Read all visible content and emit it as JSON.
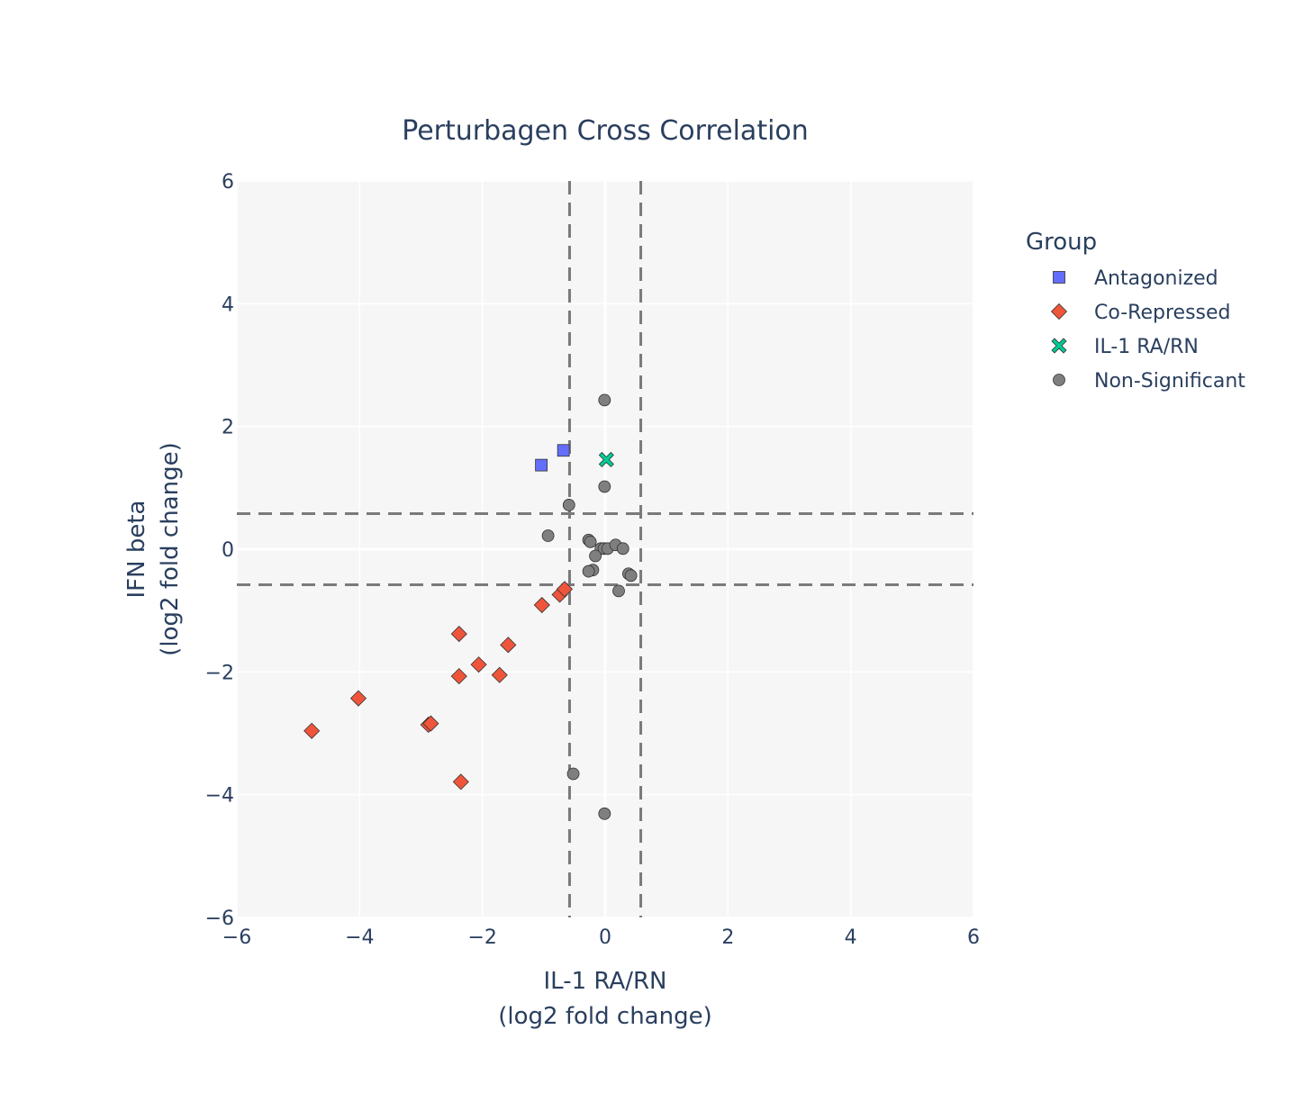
{
  "chart_data": {
    "type": "scatter",
    "title": "Perturbagen Cross Correlation",
    "xlabel": [
      "IL-1 RA/RN",
      "(log2 fold change)"
    ],
    "ylabel": [
      "IFN beta",
      "(log2 fold change)"
    ],
    "xlim": [
      -6,
      6
    ],
    "ylim": [
      -6,
      6
    ],
    "xticks": [
      -6,
      -4,
      -2,
      0,
      2,
      4,
      6
    ],
    "yticks": [
      -6,
      -4,
      -2,
      0,
      2,
      4,
      6
    ],
    "grid": true,
    "thresholds": {
      "x": [
        -0.58,
        0.58
      ],
      "y": [
        -0.58,
        0.58
      ]
    },
    "legend": {
      "title": "Group",
      "position": "right"
    },
    "series": [
      {
        "name": "Antagonized",
        "marker": "square",
        "color": "#636efa",
        "points": [
          [
            -1.04,
            1.37
          ],
          [
            -0.68,
            1.61
          ]
        ]
      },
      {
        "name": "Co-Repressed",
        "marker": "diamond",
        "color": "#ef553b",
        "points": [
          [
            -4.78,
            -2.96
          ],
          [
            -4.02,
            -2.43
          ],
          [
            -2.88,
            -2.86
          ],
          [
            -2.84,
            -2.84
          ],
          [
            -2.38,
            -1.38
          ],
          [
            -2.38,
            -2.07
          ],
          [
            -2.35,
            -3.79
          ],
          [
            -2.06,
            -1.88
          ],
          [
            -1.72,
            -2.05
          ],
          [
            -1.58,
            -1.56
          ],
          [
            -1.03,
            -0.91
          ],
          [
            -0.74,
            -0.74
          ],
          [
            -0.66,
            -0.65
          ]
        ]
      },
      {
        "name": "IL-1 RA/RN",
        "marker": "x",
        "color": "#00cc96",
        "points": [
          [
            0.02,
            1.46
          ]
        ]
      },
      {
        "name": "Non-Significant",
        "marker": "circle",
        "color": "#7f7f7f",
        "points": [
          [
            -0.01,
            2.43
          ],
          [
            -0.01,
            1.02
          ],
          [
            -0.59,
            0.72
          ],
          [
            -0.93,
            0.22
          ],
          [
            -0.27,
            0.15
          ],
          [
            -0.24,
            0.12
          ],
          [
            -0.07,
            0.01
          ],
          [
            -0.02,
            0.01
          ],
          [
            0.04,
            0.01
          ],
          [
            0.17,
            0.07
          ],
          [
            0.29,
            0.01
          ],
          [
            -0.16,
            -0.11
          ],
          [
            -0.2,
            -0.34
          ],
          [
            -0.27,
            -0.36
          ],
          [
            0.38,
            -0.4
          ],
          [
            0.42,
            -0.43
          ],
          [
            0.22,
            -0.68
          ],
          [
            -0.52,
            -3.66
          ],
          [
            -0.01,
            -4.31
          ]
        ]
      }
    ]
  }
}
